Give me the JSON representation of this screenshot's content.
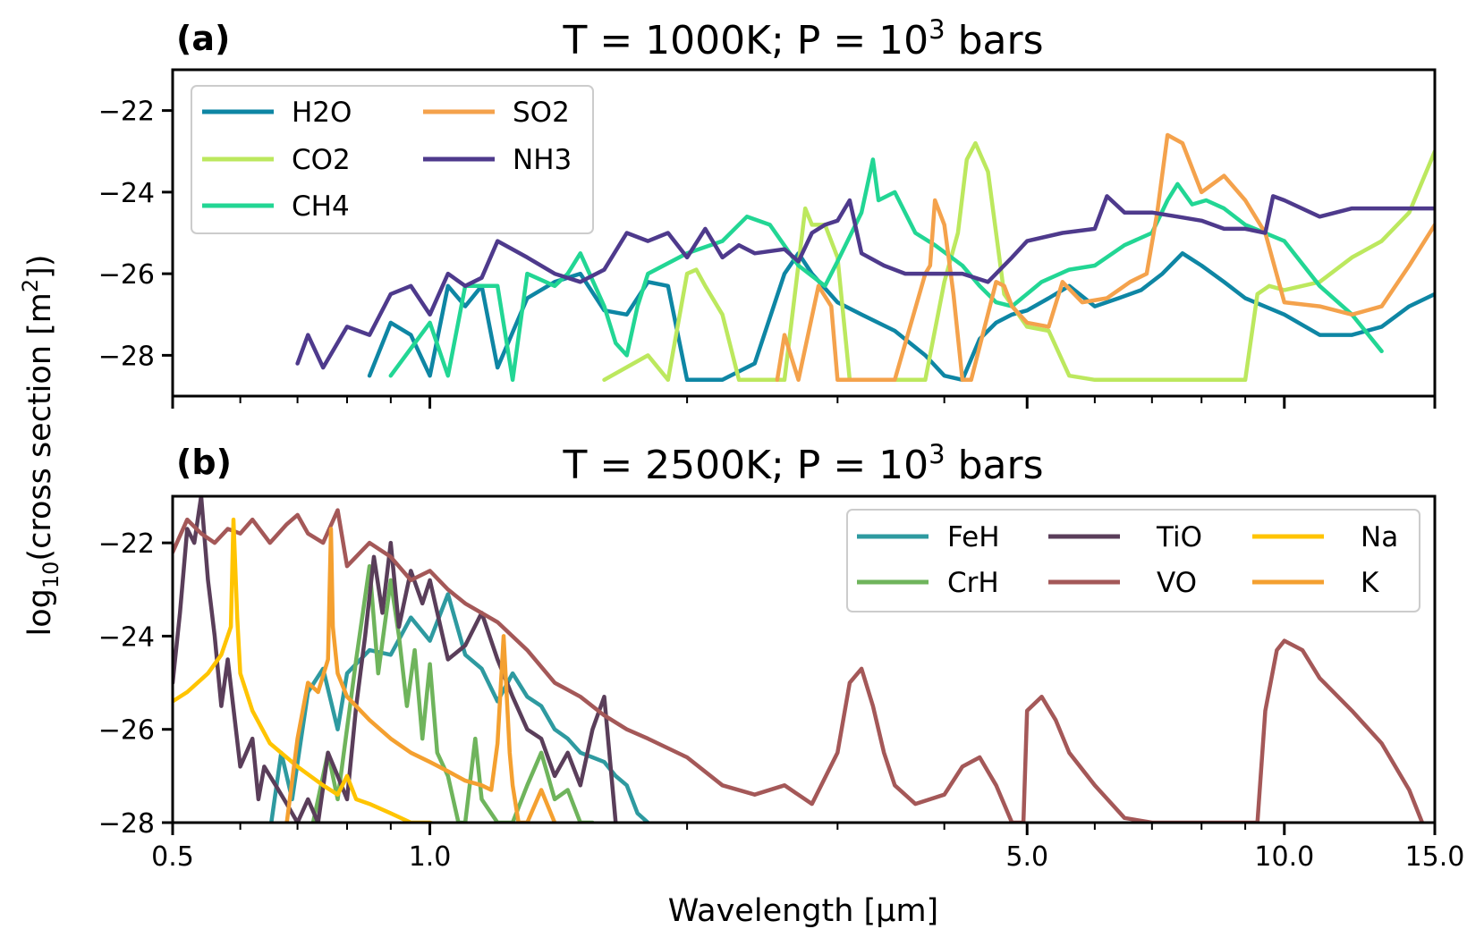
{
  "chart_data": [
    {
      "type": "line",
      "panel_label": "(a)",
      "title": "T = 1000K; P = 10",
      "title_superscript": "3",
      "title_suffix": " bars",
      "xscale": "log",
      "xlim": [
        0.5,
        15.0
      ],
      "ylim": [
        -29,
        -21
      ],
      "yticks": [
        -22,
        -24,
        -26,
        -28
      ],
      "ytick_labels": [
        "−22",
        "−24",
        "−26",
        "−28"
      ],
      "legend": {
        "position": "upper-left",
        "columns": 2
      },
      "series": [
        {
          "name": "H2O",
          "color": "#0e86a4",
          "x": [
            0.85,
            0.9,
            0.95,
            1.0,
            1.05,
            1.1,
            1.15,
            1.2,
            1.3,
            1.4,
            1.5,
            1.6,
            1.7,
            1.8,
            1.9,
            2.0,
            2.2,
            2.4,
            2.6,
            2.7,
            2.8,
            3.0,
            3.2,
            3.5,
            3.8,
            4.0,
            4.2,
            4.4,
            4.6,
            4.8,
            5.0,
            5.3,
            5.6,
            6.0,
            6.4,
            6.8,
            7.2,
            7.6,
            8.0,
            8.5,
            9.0,
            10.0,
            11.0,
            12.0,
            13.0,
            14.0,
            15.0
          ],
          "y": [
            -28.5,
            -27.2,
            -27.5,
            -28.5,
            -26.3,
            -26.8,
            -26.3,
            -28.3,
            -26.6,
            -26.2,
            -26.0,
            -26.9,
            -27.0,
            -26.2,
            -26.3,
            -28.6,
            -28.6,
            -28.2,
            -26.0,
            -25.5,
            -26.0,
            -26.7,
            -27.0,
            -27.4,
            -28.0,
            -28.5,
            -28.6,
            -27.6,
            -27.2,
            -27.0,
            -26.9,
            -26.6,
            -26.3,
            -26.8,
            -26.6,
            -26.4,
            -26.0,
            -25.5,
            -25.8,
            -26.2,
            -26.6,
            -27.0,
            -27.5,
            -27.5,
            -27.3,
            -26.8,
            -26.5
          ]
        },
        {
          "name": "CO2",
          "color": "#bce85e",
          "x": [
            1.6,
            1.8,
            1.9,
            2.0,
            2.05,
            2.1,
            2.2,
            2.3,
            2.5,
            2.6,
            2.75,
            2.8,
            2.9,
            3.0,
            3.1,
            3.2,
            3.5,
            3.8,
            4.0,
            4.15,
            4.25,
            4.35,
            4.5,
            4.7,
            5.0,
            5.3,
            5.6,
            6.0,
            6.5,
            7.0,
            7.5,
            8.0,
            9.0,
            9.3,
            9.6,
            10.0,
            11.0,
            12.0,
            13.0,
            14.0,
            15.0
          ],
          "y": [
            -28.6,
            -28.0,
            -28.6,
            -26.0,
            -25.9,
            -26.3,
            -27.0,
            -28.6,
            -28.6,
            -28.6,
            -24.4,
            -24.8,
            -24.8,
            -25.6,
            -28.6,
            -28.6,
            -28.6,
            -28.6,
            -26.2,
            -25.0,
            -23.2,
            -22.8,
            -23.5,
            -26.5,
            -27.3,
            -27.4,
            -28.5,
            -28.6,
            -28.6,
            -28.6,
            -28.6,
            -28.6,
            -28.6,
            -26.5,
            -26.3,
            -26.4,
            -26.2,
            -25.6,
            -25.2,
            -24.5,
            -23.0
          ]
        },
        {
          "name": "CH4",
          "color": "#22d694",
          "x": [
            0.9,
            1.0,
            1.05,
            1.1,
            1.2,
            1.25,
            1.3,
            1.4,
            1.45,
            1.5,
            1.6,
            1.65,
            1.7,
            1.75,
            1.8,
            2.0,
            2.2,
            2.35,
            2.5,
            2.7,
            2.9,
            3.0,
            3.2,
            3.3,
            3.35,
            3.5,
            3.7,
            3.9,
            4.2,
            4.4,
            4.6,
            4.8,
            5.2,
            5.6,
            6.0,
            6.5,
            7.0,
            7.3,
            7.5,
            7.8,
            8.1,
            8.5,
            9.0,
            10.0,
            11.0,
            12.0,
            13.0
          ],
          "y": [
            -28.5,
            -27.2,
            -28.5,
            -26.3,
            -26.3,
            -28.6,
            -26.0,
            -26.3,
            -26.0,
            -25.5,
            -26.8,
            -27.7,
            -28.0,
            -26.8,
            -26.0,
            -25.5,
            -25.2,
            -24.6,
            -24.8,
            -25.8,
            -26.3,
            -25.7,
            -24.5,
            -23.2,
            -24.2,
            -24.0,
            -25.0,
            -25.3,
            -25.8,
            -26.3,
            -26.7,
            -26.8,
            -26.2,
            -25.9,
            -25.8,
            -25.3,
            -25.0,
            -24.2,
            -23.8,
            -24.3,
            -24.2,
            -24.4,
            -24.8,
            -25.2,
            -26.3,
            -27.0,
            -27.9
          ]
        },
        {
          "name": "SO2",
          "color": "#f4a24c",
          "x": [
            2.55,
            2.6,
            2.7,
            2.85,
            2.95,
            3.0,
            3.1,
            3.2,
            3.5,
            3.8,
            3.85,
            3.9,
            4.0,
            4.1,
            4.2,
            4.3,
            4.6,
            4.7,
            4.8,
            5.0,
            5.3,
            5.5,
            5.8,
            6.2,
            6.6,
            6.9,
            7.1,
            7.3,
            7.6,
            8.0,
            8.5,
            9.0,
            9.5,
            10.0,
            11.0,
            12.0,
            13.0,
            14.0,
            15.0
          ],
          "y": [
            -28.6,
            -27.5,
            -28.6,
            -26.3,
            -26.8,
            -28.6,
            -28.6,
            -28.6,
            -28.6,
            -26.0,
            -25.8,
            -24.2,
            -24.8,
            -26.5,
            -28.6,
            -28.6,
            -26.2,
            -26.3,
            -26.8,
            -27.2,
            -27.3,
            -26.2,
            -26.7,
            -26.6,
            -26.2,
            -26.0,
            -24.5,
            -22.6,
            -22.8,
            -24.0,
            -23.6,
            -24.2,
            -25.0,
            -26.7,
            -26.8,
            -27.0,
            -26.8,
            -25.8,
            -24.8
          ]
        },
        {
          "name": "NH3",
          "color": "#4e3a8c",
          "x": [
            0.7,
            0.72,
            0.75,
            0.8,
            0.85,
            0.9,
            0.95,
            1.0,
            1.05,
            1.1,
            1.15,
            1.2,
            1.3,
            1.4,
            1.5,
            1.6,
            1.7,
            1.8,
            1.9,
            2.0,
            2.1,
            2.2,
            2.3,
            2.4,
            2.6,
            2.7,
            2.8,
            2.9,
            3.0,
            3.1,
            3.2,
            3.4,
            3.6,
            3.8,
            4.0,
            4.2,
            4.5,
            4.8,
            5.0,
            5.5,
            6.0,
            6.2,
            6.5,
            7.0,
            7.5,
            8.0,
            8.5,
            9.0,
            9.5,
            9.7,
            10.0,
            11.0,
            12.0,
            13.0,
            14.0,
            15.0
          ],
          "y": [
            -28.2,
            -27.5,
            -28.3,
            -27.3,
            -27.5,
            -26.5,
            -26.3,
            -27.0,
            -26.0,
            -26.3,
            -26.1,
            -25.2,
            -25.6,
            -26.0,
            -26.2,
            -25.9,
            -25.0,
            -25.2,
            -25.0,
            -25.6,
            -24.9,
            -25.6,
            -25.3,
            -25.5,
            -25.4,
            -25.7,
            -25.0,
            -24.8,
            -24.7,
            -24.2,
            -25.5,
            -25.8,
            -26.0,
            -26.0,
            -26.0,
            -26.0,
            -26.2,
            -25.6,
            -25.2,
            -25.0,
            -24.9,
            -24.1,
            -24.5,
            -24.5,
            -24.6,
            -24.7,
            -24.9,
            -24.9,
            -25.0,
            -24.1,
            -24.2,
            -24.6,
            -24.4,
            -24.4,
            -24.4,
            -24.4
          ]
        }
      ]
    },
    {
      "type": "line",
      "panel_label": "(b)",
      "title": "T = 2500K; P = 10",
      "title_superscript": "3",
      "title_suffix": " bars",
      "xscale": "log",
      "xlim": [
        0.5,
        15.0
      ],
      "ylim": [
        -28,
        -21
      ],
      "xlabel": "Wavelength [μm]",
      "ylabel_prefix": "log",
      "ylabel_subscript": "10",
      "ylabel_mid": "(cross section [m",
      "ylabel_superscript": "2",
      "ylabel_suffix": "])",
      "xticks": [
        0.5,
        1.0,
        5.0,
        10.0,
        15.0
      ],
      "xtick_labels": [
        "0.5",
        "1.0",
        "5.0",
        "10.0",
        "15.0"
      ],
      "yticks": [
        -22,
        -24,
        -26,
        -28
      ],
      "ytick_labels": [
        "−22",
        "−24",
        "−26",
        "−28"
      ],
      "legend": {
        "position": "upper-right",
        "columns": 3
      },
      "series": [
        {
          "name": "FeH",
          "color": "#2e9aa0",
          "x": [
            0.65,
            0.67,
            0.69,
            0.72,
            0.75,
            0.78,
            0.8,
            0.85,
            0.9,
            0.95,
            1.0,
            1.05,
            1.1,
            1.15,
            1.2,
            1.25,
            1.3,
            1.35,
            1.4,
            1.45,
            1.5,
            1.55,
            1.6,
            1.65,
            1.7,
            1.75,
            1.8
          ],
          "y": [
            -28.2,
            -26.5,
            -27.5,
            -25.2,
            -24.7,
            -26.0,
            -24.8,
            -24.3,
            -24.4,
            -23.6,
            -24.1,
            -23.1,
            -24.4,
            -24.7,
            -25.4,
            -24.8,
            -25.3,
            -25.5,
            -26.0,
            -26.2,
            -26.5,
            -26.6,
            -26.7,
            -27.0,
            -27.2,
            -27.8,
            -28.0
          ]
        },
        {
          "name": "CrH",
          "color": "#6fb45c",
          "x": [
            0.73,
            0.76,
            0.78,
            0.82,
            0.85,
            0.87,
            0.9,
            0.92,
            0.94,
            0.96,
            0.98,
            1.0,
            1.02,
            1.05,
            1.08,
            1.1,
            1.13,
            1.15,
            1.2,
            1.25,
            1.3,
            1.35,
            1.4,
            1.45,
            1.5,
            1.55
          ],
          "y": [
            -28.0,
            -26.5,
            -27.5,
            -24.5,
            -22.5,
            -24.8,
            -22.8,
            -24.0,
            -25.5,
            -24.3,
            -26.2,
            -24.6,
            -26.5,
            -27.0,
            -28.0,
            -28.0,
            -26.2,
            -27.5,
            -28.0,
            -28.0,
            -27.2,
            -26.5,
            -27.5,
            -27.3,
            -28.0,
            -28.0
          ]
        },
        {
          "name": "TiO",
          "color": "#5a3e5a",
          "x": [
            0.5,
            0.51,
            0.52,
            0.53,
            0.54,
            0.55,
            0.56,
            0.57,
            0.58,
            0.6,
            0.62,
            0.63,
            0.64,
            0.66,
            0.68,
            0.7,
            0.72,
            0.74,
            0.76,
            0.78,
            0.8,
            0.82,
            0.84,
            0.86,
            0.88,
            0.9,
            0.92,
            0.95,
            0.98,
            1.0,
            1.05,
            1.1,
            1.15,
            1.2,
            1.25,
            1.3,
            1.35,
            1.4,
            1.45,
            1.5,
            1.55,
            1.6,
            1.65
          ],
          "y": [
            -25.0,
            -23.5,
            -21.7,
            -22.0,
            -21.0,
            -22.8,
            -24.0,
            -25.5,
            -24.5,
            -26.8,
            -26.2,
            -27.5,
            -26.8,
            -27.2,
            -27.6,
            -28.0,
            -27.5,
            -28.0,
            -26.5,
            -27.0,
            -27.5,
            -25.5,
            -24.0,
            -22.3,
            -23.5,
            -22.0,
            -23.8,
            -22.6,
            -23.3,
            -22.8,
            -24.5,
            -24.2,
            -23.5,
            -24.5,
            -25.3,
            -26.0,
            -26.2,
            -27.0,
            -26.5,
            -27.2,
            -26.0,
            -25.3,
            -28.0
          ]
        },
        {
          "name": "VO",
          "color": "#a45858",
          "x": [
            0.5,
            0.52,
            0.54,
            0.56,
            0.58,
            0.6,
            0.62,
            0.65,
            0.68,
            0.7,
            0.72,
            0.75,
            0.78,
            0.8,
            0.85,
            0.9,
            0.95,
            1.0,
            1.05,
            1.1,
            1.2,
            1.3,
            1.4,
            1.5,
            1.6,
            1.7,
            1.8,
            2.0,
            2.2,
            2.4,
            2.6,
            2.8,
            3.0,
            3.1,
            3.2,
            3.3,
            3.4,
            3.5,
            3.7,
            4.0,
            4.2,
            4.4,
            4.6,
            4.8,
            4.95,
            5.0,
            5.2,
            5.4,
            5.6,
            6.0,
            6.5,
            7.0,
            8.0,
            9.0,
            9.3,
            9.5,
            9.8,
            10.0,
            10.5,
            11.0,
            12.0,
            13.0,
            14.0,
            14.5
          ],
          "y": [
            -22.2,
            -21.5,
            -21.8,
            -22.0,
            -21.7,
            -21.8,
            -21.5,
            -22.0,
            -21.6,
            -21.4,
            -21.8,
            -22.0,
            -21.3,
            -22.5,
            -22.0,
            -22.3,
            -22.8,
            -22.6,
            -23.0,
            -23.3,
            -23.7,
            -24.3,
            -25.0,
            -25.3,
            -25.7,
            -26.0,
            -26.2,
            -26.6,
            -27.2,
            -27.4,
            -27.2,
            -27.6,
            -26.5,
            -25.0,
            -24.7,
            -25.5,
            -26.5,
            -27.2,
            -27.6,
            -27.4,
            -26.8,
            -26.6,
            -27.2,
            -28.0,
            -28.0,
            -25.6,
            -25.3,
            -25.8,
            -26.5,
            -27.2,
            -27.9,
            -28.0,
            -28.0,
            -28.0,
            -28.0,
            -25.6,
            -24.3,
            -24.1,
            -24.3,
            -24.9,
            -25.6,
            -26.3,
            -27.3,
            -28.0
          ]
        },
        {
          "name": "Na",
          "color": "#ffc400",
          "x": [
            0.5,
            0.52,
            0.55,
            0.57,
            0.585,
            0.589,
            0.595,
            0.6,
            0.62,
            0.65,
            0.7,
            0.75,
            0.78,
            0.8,
            0.82,
            0.85,
            0.9,
            0.95,
            1.0,
            1.05
          ],
          "y": [
            -25.4,
            -25.2,
            -24.8,
            -24.4,
            -23.8,
            -21.5,
            -23.6,
            -24.8,
            -25.6,
            -26.3,
            -26.8,
            -27.2,
            -27.4,
            -27.0,
            -27.5,
            -27.6,
            -27.8,
            -28.0,
            -28.0,
            -28.1
          ]
        },
        {
          "name": "K",
          "color": "#f4a030",
          "x": [
            0.68,
            0.7,
            0.72,
            0.74,
            0.76,
            0.766,
            0.77,
            0.78,
            0.8,
            0.85,
            0.9,
            0.95,
            1.0,
            1.05,
            1.1,
            1.15,
            1.18,
            1.2,
            1.22,
            1.24,
            1.25,
            1.27,
            1.3,
            1.35,
            1.4
          ],
          "y": [
            -28.0,
            -26.2,
            -25.0,
            -25.2,
            -24.5,
            -21.7,
            -23.8,
            -24.8,
            -25.3,
            -25.8,
            -26.2,
            -26.5,
            -26.7,
            -26.9,
            -27.1,
            -27.2,
            -27.3,
            -26.3,
            -24.0,
            -26.5,
            -27.2,
            -28.0,
            -28.0,
            -27.3,
            -28.0
          ]
        }
      ]
    }
  ]
}
